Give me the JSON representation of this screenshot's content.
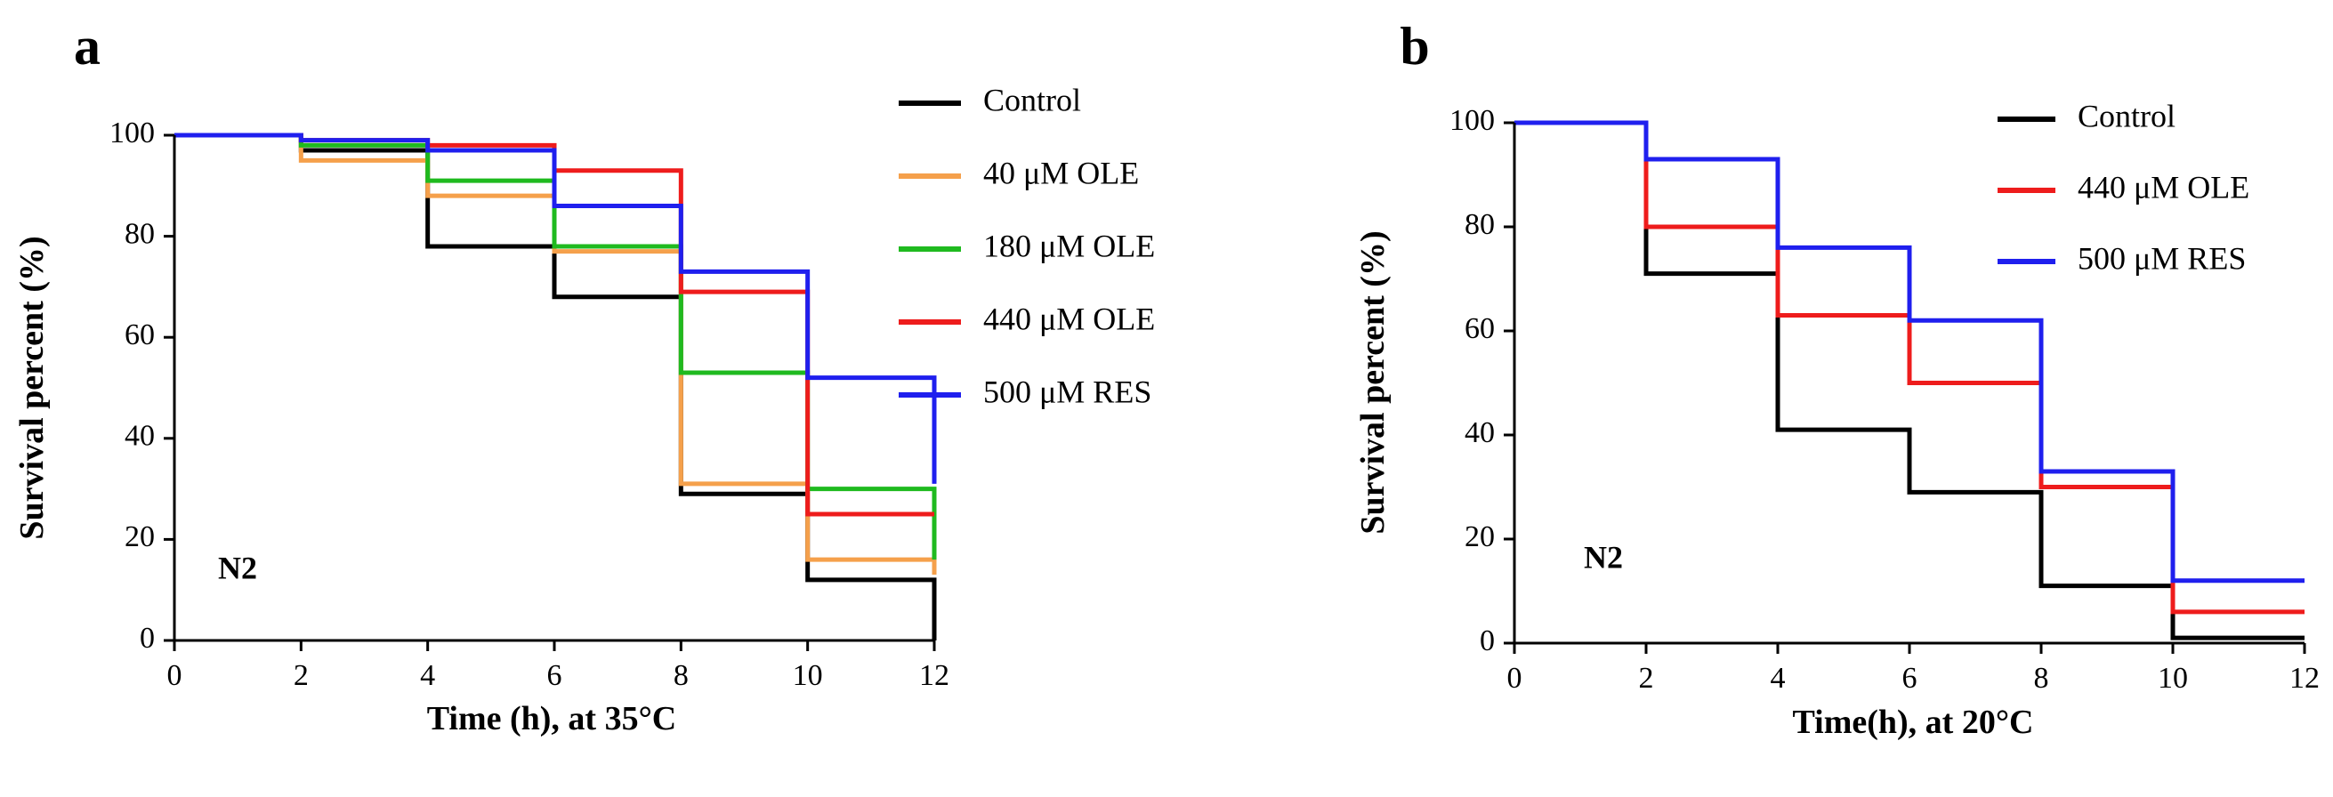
{
  "figure": {
    "panels": [
      "a",
      "b"
    ]
  },
  "chart_data": [
    {
      "type": "line",
      "step": true,
      "panel_label": "a",
      "annotation": "N2",
      "title": "",
      "xlabel": "Time (h), at 35°C",
      "ylabel": "Survival percent (%)",
      "xlim": [
        0,
        12
      ],
      "ylim": [
        0,
        100
      ],
      "xticks": [
        "0",
        "2",
        "4",
        "6",
        "8",
        "10",
        "12"
      ],
      "yticks": [
        "0",
        "20",
        "40",
        "60",
        "80",
        "100"
      ],
      "x": [
        0,
        2,
        4,
        6,
        8,
        10,
        12
      ],
      "legend_position": "right",
      "series": [
        {
          "name": "Control",
          "color": "#000000",
          "values": [
            100,
            97,
            78,
            68,
            29,
            12,
            0
          ]
        },
        {
          "name": "40 μM OLE",
          "color": "#f5a04b",
          "values": [
            100,
            95,
            88,
            77,
            31,
            16,
            13
          ]
        },
        {
          "name": "180 μM OLE",
          "color": "#1fba1f",
          "values": [
            100,
            98,
            91,
            78,
            53,
            30,
            16
          ]
        },
        {
          "name": "440 μM OLE",
          "color": "#ee1c1c",
          "values": [
            100,
            99,
            98,
            93,
            69,
            25,
            25
          ]
        },
        {
          "name": "500 μM RES",
          "color": "#1f1fee",
          "values": [
            100,
            99,
            97,
            86,
            73,
            52,
            31
          ]
        }
      ]
    },
    {
      "type": "line",
      "step": true,
      "panel_label": "b",
      "annotation": "N2",
      "title": "",
      "xlabel": "Time(h), at 20°C",
      "ylabel": "Survival percent (%)",
      "xlim": [
        0,
        12
      ],
      "ylim": [
        0,
        100
      ],
      "xticks": [
        "0",
        "2",
        "4",
        "6",
        "8",
        "10",
        "12"
      ],
      "yticks": [
        "0",
        "20",
        "40",
        "60",
        "80",
        "100"
      ],
      "x": [
        0,
        2,
        4,
        6,
        8,
        10,
        12
      ],
      "legend_position": "top-right",
      "series": [
        {
          "name": "Control",
          "color": "#000000",
          "values": [
            100,
            71,
            41,
            29,
            11,
            1,
            1
          ]
        },
        {
          "name": "440 μM OLE",
          "color": "#ee1c1c",
          "values": [
            100,
            80,
            63,
            50,
            30,
            6,
            6
          ]
        },
        {
          "name": "500 μM RES",
          "color": "#1f1fee",
          "values": [
            100,
            93,
            76,
            62,
            33,
            12,
            12
          ]
        }
      ]
    }
  ]
}
